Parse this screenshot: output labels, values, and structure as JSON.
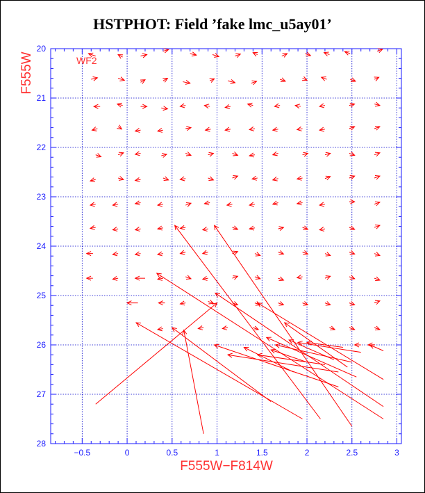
{
  "title": "HSTPHOT: Field ’fake lmc_u5ay01’",
  "colors": {
    "axis": "#1a1aff",
    "grid": "#0000cc",
    "arrows": "#ff0000",
    "labels": "#ff3333"
  },
  "chart_data": {
    "type": "quiver",
    "xlabel": "F555W−F814W",
    "ylabel": "F555W",
    "chip_label": "WF2",
    "xlim": [
      -0.85,
      3.05
    ],
    "ylim": [
      28,
      20
    ],
    "xticks": [
      -0.5,
      0,
      0.5,
      1,
      1.5,
      2,
      2.5,
      3
    ],
    "xtick_labels": [
      "−0.5",
      "0",
      "0.5",
      "1",
      "1.5",
      "2",
      "2.5",
      "3"
    ],
    "yticks": [
      20,
      21,
      22,
      23,
      24,
      25,
      26,
      27,
      28
    ],
    "ytick_labels": [
      "20",
      "21",
      "22",
      "23",
      "24",
      "25",
      "26",
      "27",
      "28"
    ],
    "grid": true,
    "arrows": [
      {
        "x0": -0.35,
        "y0": 20.15,
        "x1": -0.43,
        "y1": 20.1
      },
      {
        "x0": -0.05,
        "y0": 20.17,
        "x1": -0.1,
        "y1": 20.12
      },
      {
        "x0": 0.15,
        "y0": 20.15,
        "x1": 0.22,
        "y1": 20.12
      },
      {
        "x0": 0.4,
        "y0": 20.05,
        "x1": 0.46,
        "y1": 20.02
      },
      {
        "x0": 0.7,
        "y0": 20.1,
        "x1": 0.77,
        "y1": 20.13
      },
      {
        "x0": 0.95,
        "y0": 20.12,
        "x1": 1.02,
        "y1": 20.16
      },
      {
        "x0": 1.2,
        "y0": 20.15,
        "x1": 1.26,
        "y1": 20.11
      },
      {
        "x0": 1.45,
        "y0": 20.12,
        "x1": 1.4,
        "y1": 20.08
      },
      {
        "x0": 1.72,
        "y0": 20.15,
        "x1": 1.78,
        "y1": 20.1
      },
      {
        "x0": 1.98,
        "y0": 20.1,
        "x1": 2.04,
        "y1": 20.14
      },
      {
        "x0": 2.25,
        "y0": 20.12,
        "x1": 2.19,
        "y1": 20.08
      },
      {
        "x0": 2.48,
        "y0": 20.1,
        "x1": 2.42,
        "y1": 20.06
      },
      {
        "x0": 2.78,
        "y0": 20.05,
        "x1": 2.84,
        "y1": 20.01
      },
      {
        "x0": -0.4,
        "y0": 20.62,
        "x1": -0.33,
        "y1": 20.59
      },
      {
        "x0": -0.1,
        "y0": 20.6,
        "x1": -0.03,
        "y1": 20.64
      },
      {
        "x0": 0.15,
        "y0": 20.68,
        "x1": 0.2,
        "y1": 20.63
      },
      {
        "x0": 0.4,
        "y0": 20.65,
        "x1": 0.45,
        "y1": 20.6
      },
      {
        "x0": 0.62,
        "y0": 20.67,
        "x1": 0.7,
        "y1": 20.7
      },
      {
        "x0": 0.92,
        "y0": 20.65,
        "x1": 0.97,
        "y1": 20.61
      },
      {
        "x0": 1.12,
        "y0": 20.65,
        "x1": 1.2,
        "y1": 20.69
      },
      {
        "x0": 1.38,
        "y0": 20.7,
        "x1": 1.44,
        "y1": 20.66
      },
      {
        "x0": 1.7,
        "y0": 20.62,
        "x1": 1.76,
        "y1": 20.66
      },
      {
        "x0": 1.95,
        "y0": 20.6,
        "x1": 2.0,
        "y1": 20.64
      },
      {
        "x0": 2.22,
        "y0": 20.62,
        "x1": 2.16,
        "y1": 20.58
      },
      {
        "x0": 2.48,
        "y0": 20.62,
        "x1": 2.54,
        "y1": 20.66
      },
      {
        "x0": 2.75,
        "y0": 20.62,
        "x1": 2.8,
        "y1": 20.58
      },
      {
        "x0": -0.3,
        "y0": 21.17,
        "x1": -0.37,
        "y1": 21.17
      },
      {
        "x0": -0.05,
        "y0": 21.15,
        "x1": -0.11,
        "y1": 21.12
      },
      {
        "x0": 0.15,
        "y0": 21.17,
        "x1": 0.22,
        "y1": 21.17
      },
      {
        "x0": 0.38,
        "y0": 21.2,
        "x1": 0.45,
        "y1": 21.22
      },
      {
        "x0": 0.65,
        "y0": 21.15,
        "x1": 0.59,
        "y1": 21.17
      },
      {
        "x0": 0.92,
        "y0": 21.17,
        "x1": 0.86,
        "y1": 21.15
      },
      {
        "x0": 1.15,
        "y0": 21.17,
        "x1": 1.09,
        "y1": 21.19
      },
      {
        "x0": 1.4,
        "y0": 21.15,
        "x1": 1.34,
        "y1": 21.12
      },
      {
        "x0": 1.7,
        "y0": 21.15,
        "x1": 1.64,
        "y1": 21.17
      },
      {
        "x0": 1.93,
        "y0": 21.17,
        "x1": 1.87,
        "y1": 21.15
      },
      {
        "x0": 2.2,
        "y0": 21.15,
        "x1": 2.14,
        "y1": 21.17
      },
      {
        "x0": 2.47,
        "y0": 21.15,
        "x1": 2.53,
        "y1": 21.12
      },
      {
        "x0": 2.75,
        "y0": 21.12,
        "x1": 2.81,
        "y1": 21.15
      },
      {
        "x0": -0.33,
        "y0": 21.62,
        "x1": -0.39,
        "y1": 21.65
      },
      {
        "x0": -0.1,
        "y0": 21.58,
        "x1": -0.06,
        "y1": 21.63
      },
      {
        "x0": 0.15,
        "y0": 21.65,
        "x1": 0.09,
        "y1": 21.67
      },
      {
        "x0": 0.4,
        "y0": 21.65,
        "x1": 0.34,
        "y1": 21.67
      },
      {
        "x0": 0.65,
        "y0": 21.62,
        "x1": 0.71,
        "y1": 21.6
      },
      {
        "x0": 0.93,
        "y0": 21.63,
        "x1": 0.87,
        "y1": 21.65
      },
      {
        "x0": 1.15,
        "y0": 21.63,
        "x1": 1.09,
        "y1": 21.65
      },
      {
        "x0": 1.42,
        "y0": 21.62,
        "x1": 1.36,
        "y1": 21.64
      },
      {
        "x0": 1.68,
        "y0": 21.63,
        "x1": 1.62,
        "y1": 21.65
      },
      {
        "x0": 1.95,
        "y0": 21.62,
        "x1": 1.89,
        "y1": 21.64
      },
      {
        "x0": 2.2,
        "y0": 21.63,
        "x1": 2.14,
        "y1": 21.65
      },
      {
        "x0": 2.47,
        "y0": 21.62,
        "x1": 2.53,
        "y1": 21.58
      },
      {
        "x0": 2.75,
        "y0": 21.62,
        "x1": 2.81,
        "y1": 21.58
      },
      {
        "x0": -0.35,
        "y0": 22.15,
        "x1": -0.29,
        "y1": 22.19
      },
      {
        "x0": -0.1,
        "y0": 22.15,
        "x1": -0.04,
        "y1": 22.11
      },
      {
        "x0": 0.15,
        "y0": 22.12,
        "x1": 0.09,
        "y1": 22.14
      },
      {
        "x0": 0.38,
        "y0": 22.17,
        "x1": 0.44,
        "y1": 22.14
      },
      {
        "x0": 0.65,
        "y0": 22.12,
        "x1": 0.71,
        "y1": 22.16
      },
      {
        "x0": 0.9,
        "y0": 22.15,
        "x1": 0.96,
        "y1": 22.12
      },
      {
        "x0": 1.17,
        "y0": 22.12,
        "x1": 1.23,
        "y1": 22.16
      },
      {
        "x0": 1.42,
        "y0": 22.15,
        "x1": 1.36,
        "y1": 22.17
      },
      {
        "x0": 1.68,
        "y0": 22.12,
        "x1": 1.62,
        "y1": 22.15
      },
      {
        "x0": 1.95,
        "y0": 22.15,
        "x1": 2.01,
        "y1": 22.12
      },
      {
        "x0": 2.2,
        "y0": 22.15,
        "x1": 2.26,
        "y1": 22.12
      },
      {
        "x0": 2.47,
        "y0": 22.12,
        "x1": 2.53,
        "y1": 22.16
      },
      {
        "x0": 2.75,
        "y0": 22.15,
        "x1": 2.81,
        "y1": 22.11
      },
      {
        "x0": -0.35,
        "y0": 22.65,
        "x1": -0.41,
        "y1": 22.68
      },
      {
        "x0": -0.1,
        "y0": 22.62,
        "x1": -0.04,
        "y1": 22.65
      },
      {
        "x0": 0.15,
        "y0": 22.65,
        "x1": 0.09,
        "y1": 22.67
      },
      {
        "x0": 0.4,
        "y0": 22.62,
        "x1": 0.46,
        "y1": 22.66
      },
      {
        "x0": 0.65,
        "y0": 22.63,
        "x1": 0.59,
        "y1": 22.65
      },
      {
        "x0": 0.9,
        "y0": 22.62,
        "x1": 0.96,
        "y1": 22.66
      },
      {
        "x0": 1.17,
        "y0": 22.62,
        "x1": 1.23,
        "y1": 22.58
      },
      {
        "x0": 1.45,
        "y0": 22.62,
        "x1": 1.39,
        "y1": 22.64
      },
      {
        "x0": 1.68,
        "y0": 22.63,
        "x1": 1.62,
        "y1": 22.66
      },
      {
        "x0": 1.95,
        "y0": 22.62,
        "x1": 1.89,
        "y1": 22.64
      },
      {
        "x0": 2.2,
        "y0": 22.63,
        "x1": 2.26,
        "y1": 22.59
      },
      {
        "x0": 2.47,
        "y0": 22.62,
        "x1": 2.53,
        "y1": 22.58
      },
      {
        "x0": 2.75,
        "y0": 22.62,
        "x1": 2.81,
        "y1": 22.58
      },
      {
        "x0": -0.35,
        "y0": 23.15,
        "x1": -0.41,
        "y1": 23.17
      },
      {
        "x0": -0.1,
        "y0": 23.15,
        "x1": -0.16,
        "y1": 23.17
      },
      {
        "x0": 0.15,
        "y0": 23.12,
        "x1": 0.09,
        "y1": 23.14
      },
      {
        "x0": 0.4,
        "y0": 23.15,
        "x1": 0.34,
        "y1": 23.17
      },
      {
        "x0": 0.65,
        "y0": 23.17,
        "x1": 0.71,
        "y1": 23.13
      },
      {
        "x0": 0.92,
        "y0": 23.12,
        "x1": 0.86,
        "y1": 23.14
      },
      {
        "x0": 1.17,
        "y0": 23.15,
        "x1": 1.11,
        "y1": 23.17
      },
      {
        "x0": 1.42,
        "y0": 23.15,
        "x1": 1.36,
        "y1": 23.17
      },
      {
        "x0": 1.68,
        "y0": 23.12,
        "x1": 1.62,
        "y1": 23.15
      },
      {
        "x0": 1.95,
        "y0": 23.12,
        "x1": 1.89,
        "y1": 23.14
      },
      {
        "x0": 2.2,
        "y0": 23.15,
        "x1": 2.14,
        "y1": 23.17
      },
      {
        "x0": 2.47,
        "y0": 23.1,
        "x1": 2.53,
        "y1": 23.1
      },
      {
        "x0": 2.75,
        "y0": 23.15,
        "x1": 2.81,
        "y1": 23.11
      },
      {
        "x0": -0.35,
        "y0": 23.62,
        "x1": -0.41,
        "y1": 23.64
      },
      {
        "x0": -0.1,
        "y0": 23.65,
        "x1": -0.16,
        "y1": 23.67
      },
      {
        "x0": 0.15,
        "y0": 23.65,
        "x1": 0.09,
        "y1": 23.67
      },
      {
        "x0": 0.4,
        "y0": 23.63,
        "x1": 0.34,
        "y1": 23.65
      },
      {
        "x0": 0.65,
        "y0": 23.62,
        "x1": 0.59,
        "y1": 23.64
      },
      {
        "x0": 0.9,
        "y0": 23.65,
        "x1": 0.84,
        "y1": 23.67
      },
      {
        "x0": 1.17,
        "y0": 23.62,
        "x1": 1.23,
        "y1": 23.66
      },
      {
        "x0": 1.42,
        "y0": 23.63,
        "x1": 1.36,
        "y1": 23.65
      },
      {
        "x0": 1.68,
        "y0": 23.65,
        "x1": 1.74,
        "y1": 23.62
      },
      {
        "x0": 1.95,
        "y0": 23.62,
        "x1": 2.01,
        "y1": 23.66
      },
      {
        "x0": 2.2,
        "y0": 23.65,
        "x1": 2.14,
        "y1": 23.67
      },
      {
        "x0": 2.47,
        "y0": 23.62,
        "x1": 2.53,
        "y1": 23.66
      },
      {
        "x0": 2.75,
        "y0": 23.62,
        "x1": 2.81,
        "y1": 23.58
      },
      {
        "x0": -0.38,
        "y0": 24.15,
        "x1": -0.45,
        "y1": 24.15
      },
      {
        "x0": -0.1,
        "y0": 24.15,
        "x1": -0.16,
        "y1": 24.17
      },
      {
        "x0": 0.15,
        "y0": 24.15,
        "x1": 0.09,
        "y1": 24.17
      },
      {
        "x0": 0.4,
        "y0": 24.15,
        "x1": 0.34,
        "y1": 24.17
      },
      {
        "x0": 0.65,
        "y0": 24.12,
        "x1": 0.59,
        "y1": 24.15
      },
      {
        "x0": 0.9,
        "y0": 24.12,
        "x1": 0.84,
        "y1": 24.15
      },
      {
        "x0": 1.17,
        "y0": 24.15,
        "x1": 1.23,
        "y1": 24.11
      },
      {
        "x0": 1.42,
        "y0": 24.15,
        "x1": 1.48,
        "y1": 24.19
      },
      {
        "x0": 1.68,
        "y0": 24.12,
        "x1": 1.74,
        "y1": 24.16
      },
      {
        "x0": 1.95,
        "y0": 24.12,
        "x1": 2.01,
        "y1": 24.16
      },
      {
        "x0": 2.2,
        "y0": 24.15,
        "x1": 2.26,
        "y1": 24.19
      },
      {
        "x0": 2.47,
        "y0": 24.12,
        "x1": 2.53,
        "y1": 24.16
      },
      {
        "x0": 2.75,
        "y0": 24.15,
        "x1": 2.81,
        "y1": 24.19
      },
      {
        "x0": -0.38,
        "y0": 24.65,
        "x1": -0.45,
        "y1": 24.65
      },
      {
        "x0": -0.1,
        "y0": 24.65,
        "x1": -0.16,
        "y1": 24.67
      },
      {
        "x0": 0.2,
        "y0": 24.65,
        "x1": 0.09,
        "y1": 24.65
      },
      {
        "x0": 0.4,
        "y0": 24.65,
        "x1": 0.34,
        "y1": 24.67
      },
      {
        "x0": 0.65,
        "y0": 24.62,
        "x1": 0.71,
        "y1": 24.66
      },
      {
        "x0": 0.9,
        "y0": 24.65,
        "x1": 0.84,
        "y1": 24.67
      },
      {
        "x0": 1.17,
        "y0": 24.65,
        "x1": 1.23,
        "y1": 24.61
      },
      {
        "x0": 1.42,
        "y0": 24.62,
        "x1": 1.48,
        "y1": 24.66
      },
      {
        "x0": 1.68,
        "y0": 24.65,
        "x1": 1.74,
        "y1": 24.69
      },
      {
        "x0": 1.95,
        "y0": 24.62,
        "x1": 1.89,
        "y1": 24.64
      },
      {
        "x0": 2.2,
        "y0": 24.65,
        "x1": 2.26,
        "y1": 24.61
      },
      {
        "x0": 2.47,
        "y0": 24.62,
        "x1": 2.53,
        "y1": 24.66
      },
      {
        "x0": 2.75,
        "y0": 24.65,
        "x1": 2.81,
        "y1": 24.69
      },
      {
        "x0": 0.12,
        "y0": 25.15,
        "x1": 0.0,
        "y1": 25.15
      },
      {
        "x0": 0.42,
        "y0": 25.15,
        "x1": 0.35,
        "y1": 25.15
      },
      {
        "x0": 0.65,
        "y0": 25.15,
        "x1": 0.59,
        "y1": 25.17
      },
      {
        "x0": 0.9,
        "y0": 25.12,
        "x1": 0.96,
        "y1": 25.16
      },
      {
        "x0": 1.17,
        "y0": 25.15,
        "x1": 1.23,
        "y1": 25.19
      },
      {
        "x0": 1.42,
        "y0": 25.15,
        "x1": 1.48,
        "y1": 25.19
      },
      {
        "x0": 1.68,
        "y0": 25.15,
        "x1": 1.74,
        "y1": 25.19
      },
      {
        "x0": 1.95,
        "y0": 25.15,
        "x1": 2.01,
        "y1": 25.19
      },
      {
        "x0": 2.2,
        "y0": 25.15,
        "x1": 2.26,
        "y1": 25.19
      },
      {
        "x0": 2.47,
        "y0": 25.15,
        "x1": 2.53,
        "y1": 25.19
      },
      {
        "x0": 2.75,
        "y0": 25.15,
        "x1": 2.81,
        "y1": 25.11
      },
      {
        "x0": 0.4,
        "y0": 25.67,
        "x1": 0.34,
        "y1": 25.69
      },
      {
        "x0": 0.85,
        "y0": 25.65,
        "x1": 0.79,
        "y1": 25.67
      },
      {
        "x0": 1.12,
        "y0": 25.65,
        "x1": 1.06,
        "y1": 25.67
      },
      {
        "x0": 1.4,
        "y0": 25.65,
        "x1": 1.46,
        "y1": 25.69
      },
      {
        "x0": 2.25,
        "y0": 25.65,
        "x1": 2.31,
        "y1": 25.69
      },
      {
        "x0": 2.47,
        "y0": 25.65,
        "x1": 2.53,
        "y1": 25.69
      },
      {
        "x0": 2.75,
        "y0": 25.65,
        "x1": 2.81,
        "y1": 25.69
      },
      {
        "x0": 2.75,
        "y0": 26.0,
        "x1": 2.68,
        "y1": 26.0
      },
      {
        "x0": 2.6,
        "y0": 26.0,
        "x1": 2.53,
        "y1": 26.0
      },
      {
        "x0": 2.85,
        "y0": 26.12,
        "x1": 2.7,
        "y1": 26.0
      },
      {
        "x0": -0.35,
        "y0": 27.2,
        "x1": 1.0,
        "y1": 25.15
      },
      {
        "x0": 0.85,
        "y0": 27.8,
        "x1": 0.63,
        "y1": 25.7
      },
      {
        "x0": 1.95,
        "y0": 27.5,
        "x1": 0.1,
        "y1": 25.55
      },
      {
        "x0": 1.6,
        "y0": 27.15,
        "x1": 0.5,
        "y1": 25.65
      },
      {
        "x0": 2.15,
        "y0": 27.5,
        "x1": 0.53,
        "y1": 23.58
      },
      {
        "x0": 2.5,
        "y0": 27.65,
        "x1": 0.97,
        "y1": 23.58
      },
      {
        "x0": 2.85,
        "y0": 27.5,
        "x1": 0.33,
        "y1": 24.55
      },
      {
        "x0": 2.85,
        "y0": 27.25,
        "x1": 0.98,
        "y1": 24.95
      },
      {
        "x0": 2.85,
        "y0": 26.7,
        "x1": 1.45,
        "y1": 25.15
      },
      {
        "x0": 2.35,
        "y0": 26.85,
        "x1": 0.97,
        "y1": 26.0
      },
      {
        "x0": 1.85,
        "y0": 26.55,
        "x1": 1.3,
        "y1": 26.05
      },
      {
        "x0": 2.2,
        "y0": 26.4,
        "x1": 1.45,
        "y1": 26.2
      },
      {
        "x0": 2.35,
        "y0": 26.55,
        "x1": 1.12,
        "y1": 26.2
      },
      {
        "x0": 2.5,
        "y0": 26.35,
        "x1": 1.65,
        "y1": 26.0
      },
      {
        "x0": 2.6,
        "y0": 26.15,
        "x1": 1.9,
        "y1": 25.95
      },
      {
        "x0": 2.4,
        "y0": 26.05,
        "x1": 2.0,
        "y1": 25.95
      },
      {
        "x0": 2.55,
        "y0": 26.65,
        "x1": 1.55,
        "y1": 25.85
      },
      {
        "x0": 2.45,
        "y0": 26.45,
        "x1": 1.75,
        "y1": 25.55
      },
      {
        "x0": 2.3,
        "y0": 26.3,
        "x1": 1.8,
        "y1": 25.9
      },
      {
        "x0": 2.0,
        "y0": 26.35,
        "x1": 1.6,
        "y1": 26.1
      }
    ]
  }
}
